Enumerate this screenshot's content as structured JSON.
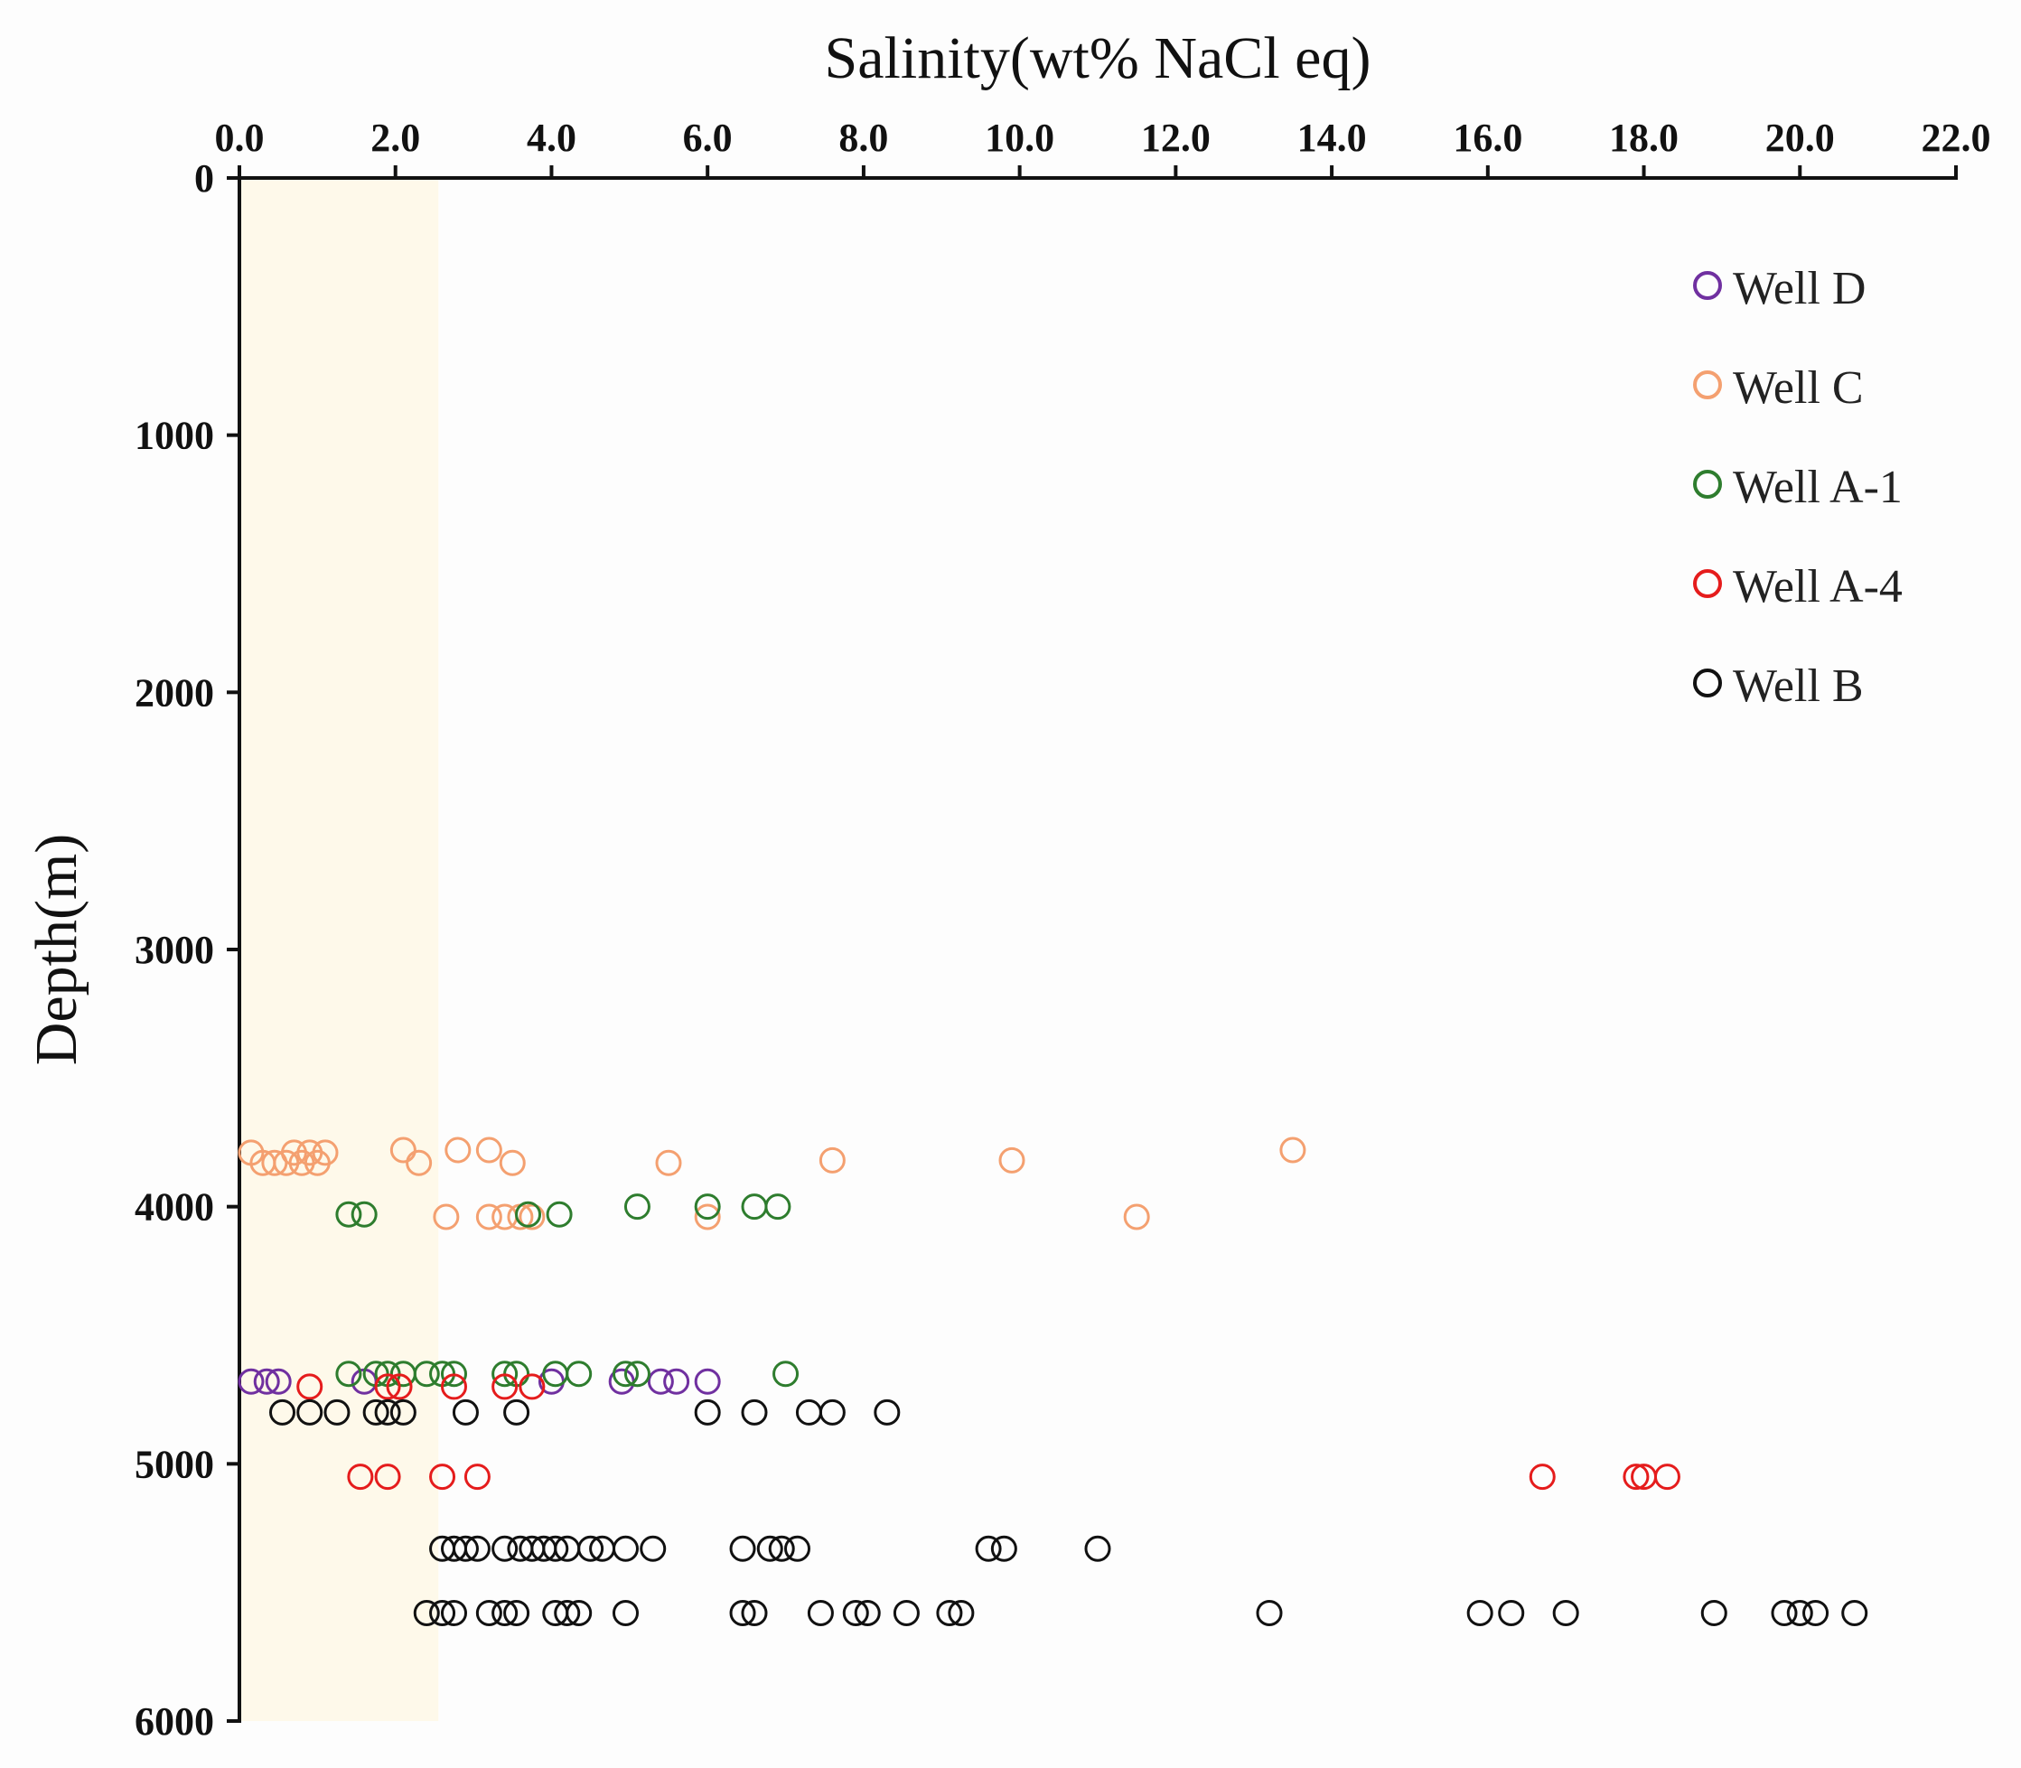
{
  "chart_data": {
    "type": "scatter",
    "xlabel": "Salinity(wt% NaCl eq)",
    "ylabel": "Depth(m)",
    "xlim": [
      0,
      22
    ],
    "ylim": [
      0,
      6000
    ],
    "x_ticks": [
      "0.0",
      "2.0",
      "4.0",
      "6.0",
      "8.0",
      "10.0",
      "12.0",
      "14.0",
      "16.0",
      "18.0",
      "20.0",
      "22.0"
    ],
    "y_ticks": [
      "0",
      "1000",
      "2000",
      "3000",
      "4000",
      "5000",
      "6000"
    ],
    "highlight_band": {
      "x_from": 0,
      "x_to": 2.55,
      "color": "#fef9ea"
    },
    "legend_position": "top-right",
    "series": [
      {
        "name": "Well D",
        "color": "#7030a0",
        "points": [
          [
            0.15,
            4680
          ],
          [
            0.35,
            4680
          ],
          [
            0.5,
            4680
          ],
          [
            1.6,
            4680
          ],
          [
            4.0,
            4680
          ],
          [
            4.9,
            4680
          ],
          [
            5.4,
            4680
          ],
          [
            5.6,
            4680
          ],
          [
            6.0,
            4680
          ]
        ]
      },
      {
        "name": "Well C",
        "color": "#f4a070",
        "points": [
          [
            0.15,
            3790
          ],
          [
            0.3,
            3830
          ],
          [
            0.45,
            3830
          ],
          [
            0.6,
            3830
          ],
          [
            0.7,
            3790
          ],
          [
            0.8,
            3830
          ],
          [
            0.9,
            3790
          ],
          [
            1.0,
            3830
          ],
          [
            1.1,
            3790
          ],
          [
            2.1,
            3780
          ],
          [
            2.3,
            3830
          ],
          [
            2.8,
            3780
          ],
          [
            3.2,
            3780
          ],
          [
            3.5,
            3830
          ],
          [
            5.5,
            3830
          ],
          [
            7.6,
            3820
          ],
          [
            9.9,
            3820
          ],
          [
            13.5,
            3780
          ],
          [
            2.65,
            4040
          ],
          [
            3.2,
            4040
          ],
          [
            3.4,
            4040
          ],
          [
            3.6,
            4040
          ],
          [
            3.75,
            4040
          ],
          [
            6.0,
            4040
          ],
          [
            11.5,
            4040
          ]
        ]
      },
      {
        "name": "Well A-1",
        "color": "#2e7d2e",
        "points": [
          [
            1.4,
            4030
          ],
          [
            1.6,
            4030
          ],
          [
            3.7,
            4030
          ],
          [
            4.1,
            4030
          ],
          [
            5.1,
            4000
          ],
          [
            6.0,
            4000
          ],
          [
            6.6,
            4000
          ],
          [
            6.9,
            4000
          ],
          [
            1.4,
            4650
          ],
          [
            1.75,
            4650
          ],
          [
            1.9,
            4650
          ],
          [
            2.1,
            4650
          ],
          [
            2.4,
            4650
          ],
          [
            2.6,
            4650
          ],
          [
            2.75,
            4650
          ],
          [
            3.4,
            4650
          ],
          [
            3.55,
            4650
          ],
          [
            4.05,
            4650
          ],
          [
            4.35,
            4650
          ],
          [
            4.95,
            4650
          ],
          [
            5.1,
            4650
          ],
          [
            7.0,
            4650
          ]
        ]
      },
      {
        "name": "Well A-4",
        "color": "#e51c1c",
        "points": [
          [
            0.9,
            4700
          ],
          [
            1.9,
            4700
          ],
          [
            2.05,
            4700
          ],
          [
            2.75,
            4700
          ],
          [
            3.4,
            4700
          ],
          [
            3.75,
            4700
          ],
          [
            1.55,
            5050
          ],
          [
            1.9,
            5050
          ],
          [
            2.6,
            5050
          ],
          [
            3.05,
            5050
          ],
          [
            16.7,
            5050
          ],
          [
            17.9,
            5050
          ],
          [
            18.0,
            5050
          ],
          [
            18.3,
            5050
          ]
        ]
      },
      {
        "name": "Well B",
        "color": "#111111",
        "points": [
          [
            0.55,
            4800
          ],
          [
            0.9,
            4800
          ],
          [
            1.25,
            4800
          ],
          [
            1.75,
            4800
          ],
          [
            1.9,
            4800
          ],
          [
            2.1,
            4800
          ],
          [
            2.9,
            4800
          ],
          [
            3.55,
            4800
          ],
          [
            6.0,
            4800
          ],
          [
            6.6,
            4800
          ],
          [
            7.3,
            4800
          ],
          [
            7.6,
            4800
          ],
          [
            8.3,
            4800
          ],
          [
            2.6,
            5330
          ],
          [
            2.75,
            5330
          ],
          [
            2.9,
            5330
          ],
          [
            3.05,
            5330
          ],
          [
            3.4,
            5330
          ],
          [
            3.6,
            5330
          ],
          [
            3.75,
            5330
          ],
          [
            3.9,
            5330
          ],
          [
            4.05,
            5330
          ],
          [
            4.2,
            5330
          ],
          [
            4.5,
            5330
          ],
          [
            4.65,
            5330
          ],
          [
            4.95,
            5330
          ],
          [
            5.3,
            5330
          ],
          [
            6.45,
            5330
          ],
          [
            6.8,
            5330
          ],
          [
            6.95,
            5330
          ],
          [
            7.15,
            5330
          ],
          [
            9.6,
            5330
          ],
          [
            9.8,
            5330
          ],
          [
            11.0,
            5330
          ],
          [
            2.4,
            5580
          ],
          [
            2.6,
            5580
          ],
          [
            2.75,
            5580
          ],
          [
            3.2,
            5580
          ],
          [
            3.4,
            5580
          ],
          [
            3.55,
            5580
          ],
          [
            4.05,
            5580
          ],
          [
            4.2,
            5580
          ],
          [
            4.35,
            5580
          ],
          [
            4.95,
            5580
          ],
          [
            6.45,
            5580
          ],
          [
            6.6,
            5580
          ],
          [
            7.45,
            5580
          ],
          [
            7.9,
            5580
          ],
          [
            8.05,
            5580
          ],
          [
            8.55,
            5580
          ],
          [
            9.1,
            5580
          ],
          [
            9.25,
            5580
          ],
          [
            13.2,
            5580
          ],
          [
            15.9,
            5580
          ],
          [
            16.3,
            5580
          ],
          [
            17.0,
            5580
          ],
          [
            18.9,
            5580
          ],
          [
            19.8,
            5580
          ],
          [
            20.0,
            5580
          ],
          [
            20.2,
            5580
          ],
          [
            20.7,
            5580
          ]
        ]
      }
    ]
  }
}
